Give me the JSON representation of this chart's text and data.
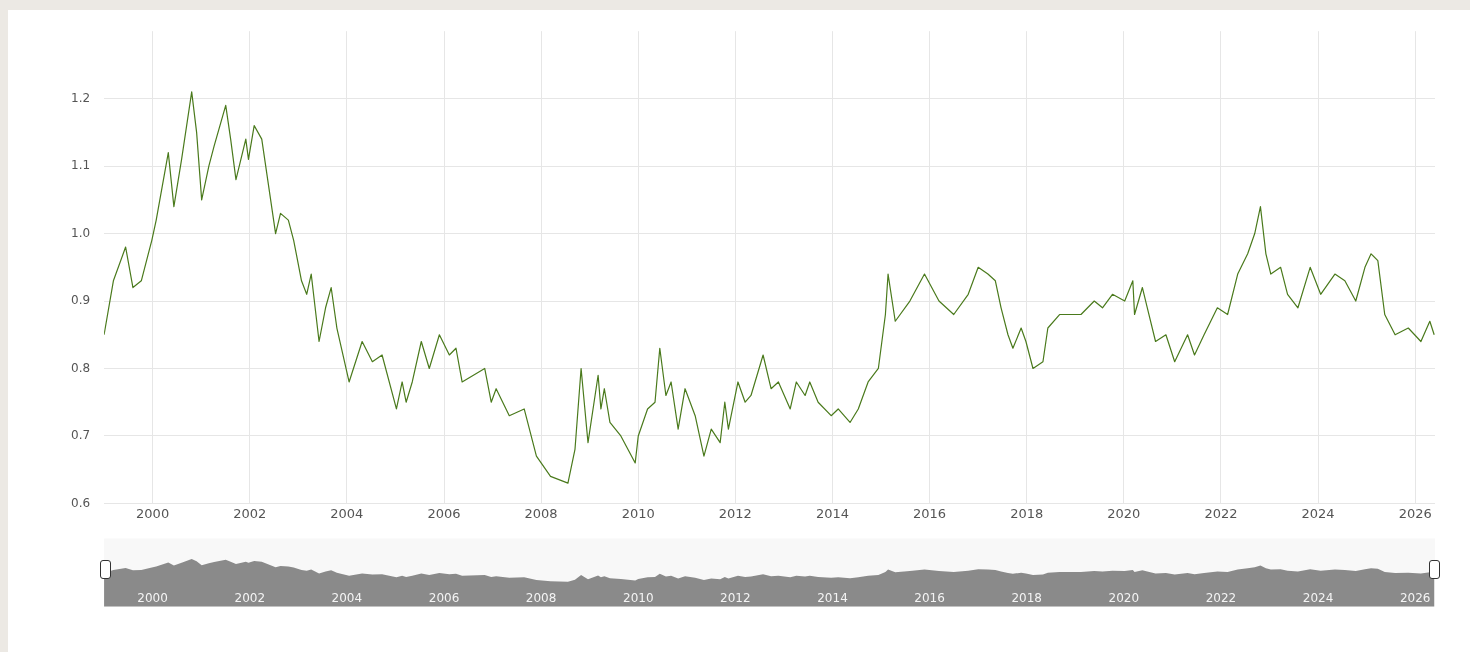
{
  "chart_data": {
    "type": "line",
    "xlim": [
      "1999-01-01",
      "2026-05-30"
    ],
    "ylim": [
      0.6,
      1.3
    ],
    "xticks": [
      {
        "value": "2000-01-01",
        "label": "2000"
      },
      {
        "value": "2002-01-01",
        "label": "2002"
      },
      {
        "value": "2004-01-01",
        "label": "2004"
      },
      {
        "value": "2006-01-01",
        "label": "2006"
      },
      {
        "value": "2008-01-01",
        "label": "2008"
      },
      {
        "value": "2010-01-01",
        "label": "2010"
      },
      {
        "value": "2012-01-01",
        "label": "2012"
      },
      {
        "value": "2014-01-01",
        "label": "2014"
      },
      {
        "value": "2016-01-01",
        "label": "2016"
      },
      {
        "value": "2018-01-01",
        "label": "2018"
      },
      {
        "value": "2020-01-01",
        "label": "2020"
      },
      {
        "value": "2022-01-01",
        "label": "2022"
      },
      {
        "value": "2024-01-01",
        "label": "2024"
      },
      {
        "value": "2026-01-01",
        "label": "2026"
      }
    ],
    "yticks": [
      {
        "value": 0.6,
        "label": "0.6"
      },
      {
        "value": 0.7,
        "label": "0.7"
      },
      {
        "value": 0.8,
        "label": "0.8"
      },
      {
        "value": 0.9,
        "label": "0.9"
      },
      {
        "value": 1.0,
        "label": "1.0"
      },
      {
        "value": 1.1,
        "label": "1.1"
      },
      {
        "value": 1.2,
        "label": "1.2"
      }
    ],
    "grid": true,
    "legend": false,
    "marker": "none",
    "line_style": "solid",
    "x": [
      "1999-01-01",
      "1999-03-12",
      "1999-06-12",
      "1999-08-06",
      "1999-10-08",
      "1999-12-26",
      "2000-01-28",
      "2000-04-28",
      "2000-06-09",
      "2000-08-06",
      "2000-10-21",
      "2000-11-27",
      "2001-01-04",
      "2001-02-27",
      "2001-04-08",
      "2001-07-04",
      "2001-08-10",
      "2001-09-19",
      "2001-12-02",
      "2001-12-22",
      "2002-02-03",
      "2002-04-01",
      "2002-07-14",
      "2002-08-20",
      "2002-10-18",
      "2002-11-27",
      "2003-01-25",
      "2003-03-05",
      "2003-04-08",
      "2003-06-06",
      "2003-07-25",
      "2003-09-05",
      "2003-10-18",
      "2004-01-18",
      "2004-04-25",
      "2004-07-11",
      "2004-09-22",
      "2005-01-08",
      "2005-02-20",
      "2005-03-22",
      "2005-05-07",
      "2005-07-14",
      "2005-09-12",
      "2005-11-27",
      "2006-02-10",
      "2006-04-01",
      "2006-05-17",
      "2006-11-03",
      "2006-12-22",
      "2007-01-28",
      "2007-05-07",
      "2007-08-27",
      "2007-11-27",
      "2008-03-12",
      "2008-07-21",
      "2008-09-12",
      "2008-10-28",
      "2008-12-19",
      "2009-03-05",
      "2009-03-26",
      "2009-04-21",
      "2009-06-02",
      "2009-08-23",
      "2009-12-09",
      "2010-01-01",
      "2010-03-12",
      "2010-05-07",
      "2010-06-12",
      "2010-07-28",
      "2010-09-05",
      "2010-10-28",
      "2010-12-19",
      "2011-03-05",
      "2011-05-10",
      "2011-07-04",
      "2011-09-09",
      "2011-10-14",
      "2011-11-10",
      "2012-01-21",
      "2012-03-15",
      "2012-04-28",
      "2012-07-28",
      "2012-09-26",
      "2012-11-20",
      "2013-02-17",
      "2013-04-04",
      "2013-06-09",
      "2013-07-14",
      "2013-09-15",
      "2013-12-22",
      "2014-02-13",
      "2014-05-13",
      "2014-07-14",
      "2014-09-26",
      "2014-12-12",
      "2015-02-03",
      "2015-02-23",
      "2015-04-18",
      "2015-08-06",
      "2015-11-24",
      "2016-03-12",
      "2016-07-01",
      "2016-10-18",
      "2017-01-01",
      "2017-03-15",
      "2017-05-10",
      "2017-06-22",
      "2017-08-13",
      "2017-09-19",
      "2017-11-20",
      "2017-12-26",
      "2018-02-17",
      "2018-05-03",
      "2018-06-09",
      "2018-09-05",
      "2018-11-27",
      "2019-02-13",
      "2019-05-24",
      "2019-07-25",
      "2019-10-08",
      "2020-01-08",
      "2020-03-09",
      "2020-03-22",
      "2020-05-20",
      "2020-06-26",
      "2020-08-27",
      "2020-11-13",
      "2021-01-18",
      "2021-04-25",
      "2021-06-16",
      "2021-08-27",
      "2021-12-05",
      "2022-02-20",
      "2022-05-07",
      "2022-07-21",
      "2022-09-12",
      "2022-10-25",
      "2022-12-05",
      "2023-01-11",
      "2023-03-26",
      "2023-05-17",
      "2023-08-03",
      "2023-11-03",
      "2024-01-21",
      "2024-05-07",
      "2024-07-21",
      "2024-10-11",
      "2024-12-19",
      "2025-02-03",
      "2025-03-26",
      "2025-05-17",
      "2025-08-03",
      "2025-11-10",
      "2026-02-13",
      "2026-04-21",
      "2026-05-24"
    ],
    "series": [
      {
        "color": "#4a7a1c",
        "values": [
          0.85,
          0.93,
          0.98,
          0.92,
          0.93,
          0.99,
          1.02,
          1.12,
          1.04,
          1.11,
          1.21,
          1.15,
          1.05,
          1.1,
          1.13,
          1.19,
          1.14,
          1.08,
          1.14,
          1.11,
          1.16,
          1.14,
          1.0,
          1.03,
          1.02,
          0.99,
          0.93,
          0.91,
          0.94,
          0.84,
          0.89,
          0.92,
          0.86,
          0.78,
          0.84,
          0.81,
          0.82,
          0.74,
          0.78,
          0.75,
          0.78,
          0.84,
          0.8,
          0.85,
          0.82,
          0.83,
          0.78,
          0.8,
          0.75,
          0.77,
          0.73,
          0.74,
          0.67,
          0.64,
          0.63,
          0.68,
          0.8,
          0.69,
          0.79,
          0.74,
          0.77,
          0.72,
          0.7,
          0.66,
          0.7,
          0.74,
          0.75,
          0.83,
          0.76,
          0.78,
          0.71,
          0.77,
          0.73,
          0.67,
          0.71,
          0.69,
          0.75,
          0.71,
          0.78,
          0.75,
          0.76,
          0.82,
          0.77,
          0.78,
          0.74,
          0.78,
          0.76,
          0.78,
          0.75,
          0.73,
          0.74,
          0.72,
          0.74,
          0.78,
          0.8,
          0.88,
          0.94,
          0.87,
          0.9,
          0.94,
          0.9,
          0.88,
          0.91,
          0.95,
          0.94,
          0.93,
          0.89,
          0.85,
          0.83,
          0.86,
          0.84,
          0.8,
          0.81,
          0.86,
          0.88,
          0.88,
          0.88,
          0.9,
          0.89,
          0.91,
          0.9,
          0.93,
          0.88,
          0.92,
          0.89,
          0.84,
          0.85,
          0.81,
          0.85,
          0.82,
          0.85,
          0.89,
          0.88,
          0.94,
          0.97,
          1.0,
          1.04,
          0.97,
          0.94,
          0.95,
          0.91,
          0.89,
          0.95,
          0.91,
          0.94,
          0.93,
          0.9,
          0.95,
          0.97,
          0.96,
          0.88,
          0.85,
          0.86,
          0.84,
          0.87,
          0.85
        ]
      }
    ]
  }
}
